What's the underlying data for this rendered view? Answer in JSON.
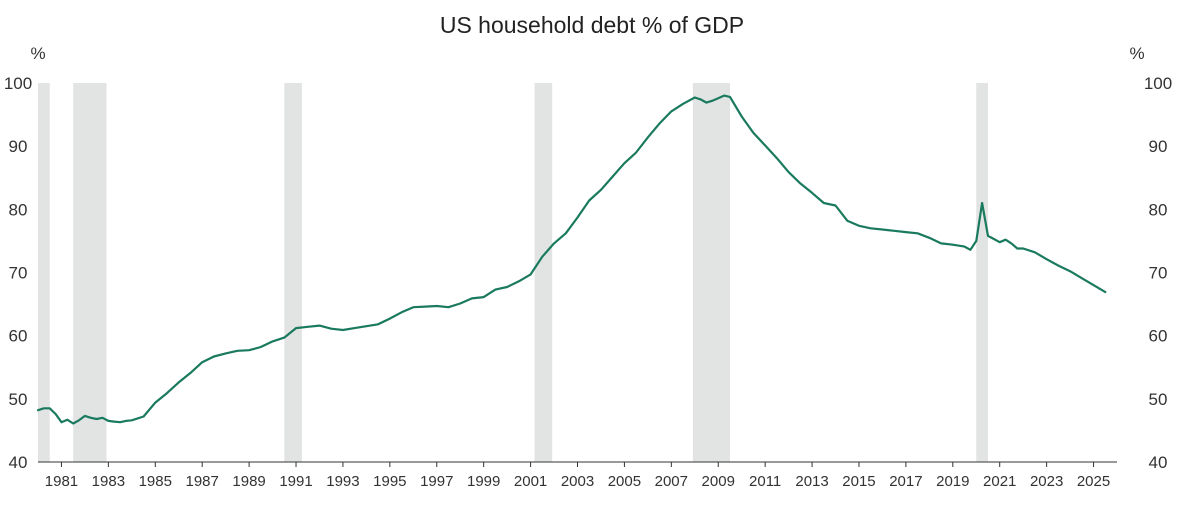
{
  "chart_data": {
    "type": "line",
    "title": "US household debt % of GDP",
    "ylabel_left": "%",
    "ylabel_right": "%",
    "ylim": [
      40,
      100
    ],
    "yticks": [
      40,
      50,
      60,
      70,
      80,
      90,
      100
    ],
    "xlim": [
      1980.0,
      2026.0
    ],
    "xticks": [
      1981,
      1983,
      1985,
      1987,
      1989,
      1991,
      1993,
      1995,
      1997,
      1999,
      2001,
      2003,
      2005,
      2007,
      2009,
      2011,
      2013,
      2015,
      2017,
      2019,
      2021,
      2023,
      2025
    ],
    "grid": false,
    "line_color": "#1a7a5e",
    "recession_color": "#e2e3e3",
    "recessions": [
      [
        1980.0,
        1980.5
      ],
      [
        1981.5,
        1982.92
      ],
      [
        1990.5,
        1991.25
      ],
      [
        2001.17,
        2001.92
      ],
      [
        2007.92,
        2009.5
      ],
      [
        2020.0,
        2020.5
      ]
    ],
    "series": [
      {
        "name": "US household debt % of GDP",
        "x": [
          1980.0,
          1980.25,
          1980.5,
          1980.75,
          1981.0,
          1981.25,
          1981.5,
          1981.75,
          1982.0,
          1982.25,
          1982.5,
          1982.75,
          1983.0,
          1983.25,
          1983.5,
          1983.75,
          1984.0,
          1984.5,
          1985.0,
          1985.5,
          1986.0,
          1986.5,
          1987.0,
          1987.5,
          1988.0,
          1988.5,
          1989.0,
          1989.5,
          1990.0,
          1990.5,
          1991.0,
          1991.5,
          1992.0,
          1992.5,
          1993.0,
          1993.5,
          1994.0,
          1994.5,
          1995.0,
          1995.5,
          1996.0,
          1996.5,
          1997.0,
          1997.5,
          1998.0,
          1998.5,
          1999.0,
          1999.5,
          2000.0,
          2000.5,
          2001.0,
          2001.5,
          2002.0,
          2002.5,
          2003.0,
          2003.5,
          2004.0,
          2004.5,
          2005.0,
          2005.5,
          2006.0,
          2006.5,
          2007.0,
          2007.5,
          2008.0,
          2008.25,
          2008.5,
          2008.75,
          2009.0,
          2009.25,
          2009.5,
          2010.0,
          2010.5,
          2011.0,
          2011.5,
          2012.0,
          2012.5,
          2013.0,
          2013.5,
          2014.0,
          2014.5,
          2015.0,
          2015.5,
          2016.0,
          2016.5,
          2017.0,
          2017.5,
          2018.0,
          2018.5,
          2019.0,
          2019.5,
          2019.75,
          2020.0,
          2020.25,
          2020.5,
          2020.75,
          2021.0,
          2021.25,
          2021.5,
          2021.75,
          2022.0,
          2022.5,
          2023.0,
          2023.5,
          2024.0,
          2024.5,
          2025.0,
          2025.5
        ],
        "values": [
          48.2,
          48.5,
          48.5,
          47.6,
          46.3,
          46.7,
          46.1,
          46.6,
          47.3,
          47.0,
          46.8,
          47.0,
          46.5,
          46.4,
          46.3,
          46.5,
          46.6,
          47.2,
          49.4,
          50.9,
          52.6,
          54.1,
          55.8,
          56.7,
          57.2,
          57.6,
          57.7,
          58.2,
          59.1,
          59.7,
          61.2,
          61.4,
          61.6,
          61.1,
          60.9,
          61.2,
          61.5,
          61.8,
          62.7,
          63.7,
          64.5,
          64.6,
          64.7,
          64.5,
          65.1,
          65.9,
          66.1,
          67.3,
          67.7,
          68.6,
          69.7,
          72.5,
          74.6,
          76.2,
          78.7,
          81.4,
          83.1,
          85.2,
          87.3,
          89.0,
          91.4,
          93.6,
          95.5,
          96.7,
          97.7,
          97.4,
          96.9,
          97.2,
          97.6,
          98.0,
          97.8,
          94.7,
          92.1,
          90.1,
          88.1,
          85.9,
          84.1,
          82.6,
          81.0,
          80.6,
          78.2,
          77.4,
          77.0,
          76.8,
          76.6,
          76.4,
          76.2,
          75.5,
          74.6,
          74.4,
          74.1,
          73.6,
          75.0,
          81.0,
          75.8,
          75.3,
          74.8,
          75.2,
          74.6,
          73.8,
          73.8,
          73.2,
          72.1,
          71.1,
          70.2,
          69.1,
          68.0,
          66.9
        ]
      }
    ]
  }
}
